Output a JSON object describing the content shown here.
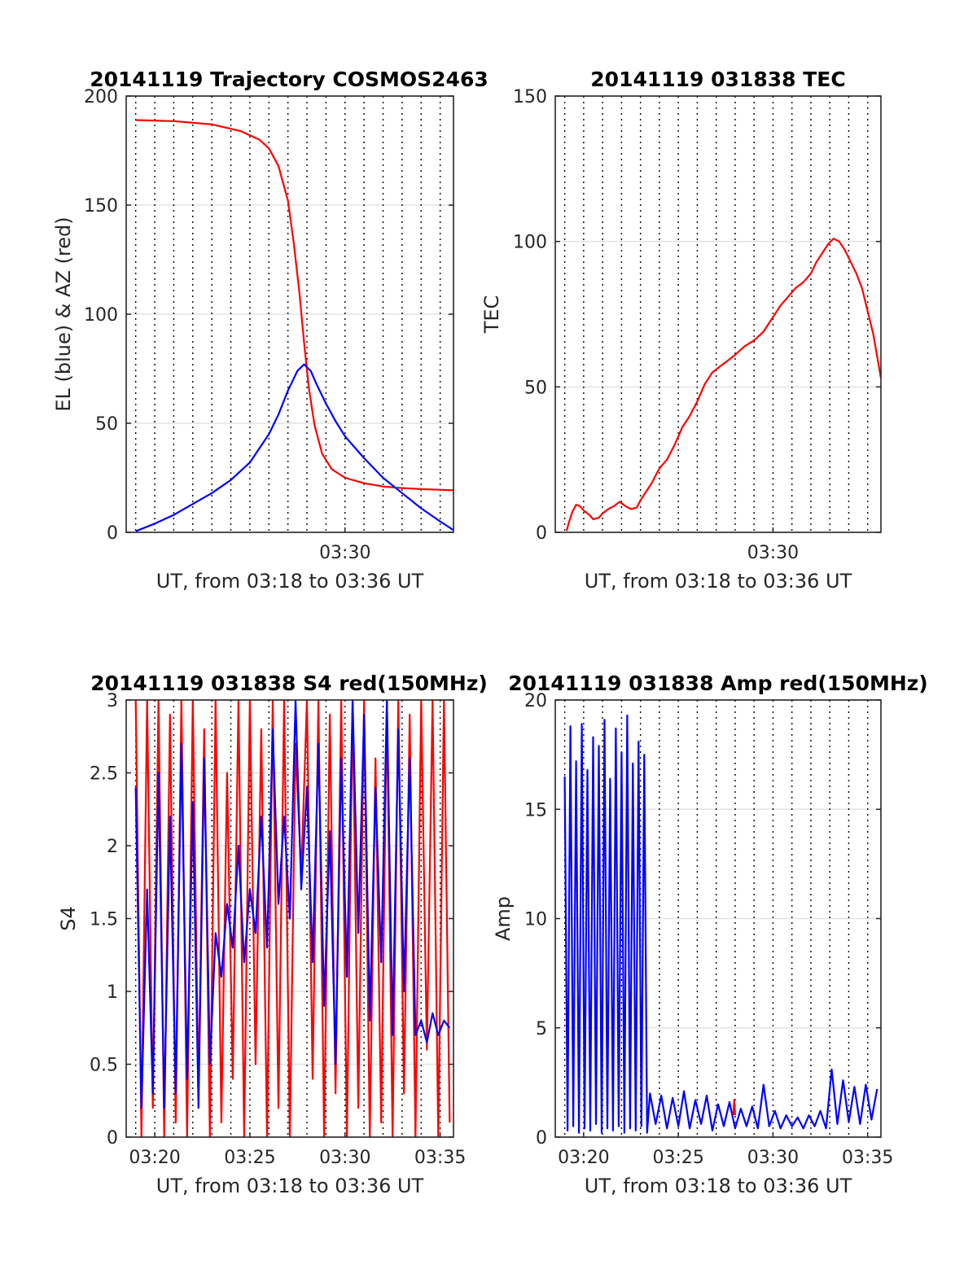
{
  "chart_data": [
    {
      "type": "line",
      "title": "20141119 Trajectory COSMOS2463",
      "xlabel": "UT, from 03:18 to 03:36 UT",
      "ylabel": "EL (blue) & AZ (red)",
      "x_unit": "minutes since 03:18 UT",
      "xlim": [
        18.5,
        35.7
      ],
      "ylim": [
        0,
        200
      ],
      "yticks": [
        0,
        50,
        100,
        150,
        200
      ],
      "xticks": [
        {
          "value": 30,
          "label": "03:30"
        }
      ],
      "grid": "dotted vertical minute lines, light horizontal lines",
      "series": [
        {
          "name": "AZ",
          "color": "#ff0000",
          "x": [
            19.0,
            21.0,
            23.0,
            24.5,
            25.5,
            26.0,
            26.5,
            27.0,
            27.3,
            27.6,
            27.85,
            28.1,
            28.4,
            28.8,
            29.3,
            30.0,
            31.0,
            32.0,
            33.0,
            34.0,
            35.0,
            35.7
          ],
          "y": [
            189,
            188.5,
            187,
            184,
            180,
            176,
            168,
            152,
            133,
            110,
            87,
            66,
            49,
            36,
            29,
            25,
            22.5,
            21,
            20.3,
            19.8,
            19.5,
            19.3
          ]
        },
        {
          "name": "EL",
          "color": "#0000ff",
          "x": [
            19.0,
            20.0,
            21.0,
            22.0,
            23.0,
            24.0,
            25.0,
            26.0,
            26.5,
            27.0,
            27.5,
            27.85,
            28.2,
            28.5,
            29.0,
            29.5,
            30.0,
            31.0,
            32.0,
            33.0,
            34.0,
            35.0,
            35.7
          ],
          "y": [
            0.5,
            4,
            8,
            13,
            18,
            24,
            32,
            45,
            54,
            65,
            74,
            77,
            74,
            68,
            59,
            51,
            44,
            34,
            25,
            18,
            11,
            5,
            1
          ]
        }
      ]
    },
    {
      "type": "line",
      "title": "20141119 031838 TEC",
      "xlabel": "UT, from 03:18 to 03:36 UT",
      "ylabel": "TEC",
      "x_unit": "minutes since 03:18 UT",
      "xlim": [
        18.5,
        35.7
      ],
      "ylim": [
        0,
        150
      ],
      "yticks": [
        0,
        50,
        100,
        150
      ],
      "xticks": [
        {
          "value": 30,
          "label": "03:30"
        }
      ],
      "series": [
        {
          "name": "TEC",
          "color": "#ff0000",
          "x": [
            19.1,
            19.2,
            19.4,
            19.6,
            19.8,
            20.0,
            20.3,
            20.5,
            20.8,
            21.0,
            21.3,
            21.6,
            21.9,
            22.2,
            22.5,
            22.8,
            23.0,
            23.3,
            23.6,
            24.0,
            24.4,
            24.8,
            25.2,
            25.6,
            26.0,
            26.4,
            26.8,
            27.2,
            27.6,
            28.0,
            28.5,
            29.0,
            29.5,
            30.0,
            30.4,
            30.8,
            31.2,
            31.6,
            32.0,
            32.3,
            32.6,
            32.9,
            33.2,
            33.5,
            33.8,
            34.1,
            34.4,
            34.7,
            35.0,
            35.3,
            35.7
          ],
          "y": [
            0.5,
            3,
            7,
            9.5,
            9,
            7.5,
            6,
            4.5,
            5,
            6.5,
            8,
            9,
            10.5,
            9,
            8,
            8.5,
            11,
            14,
            17,
            22,
            25,
            30,
            36,
            40,
            45,
            51,
            55,
            57,
            59,
            61,
            64,
            66,
            69,
            74,
            78,
            81,
            84,
            86,
            89,
            93,
            96,
            99,
            101,
            100,
            97,
            93,
            89,
            84,
            76,
            68,
            53
          ]
        }
      ]
    },
    {
      "type": "line",
      "title": "20141119 031838 S4 red(150MHz)",
      "xlabel": "UT, from 03:18 to 03:36 UT",
      "ylabel": "S4",
      "x_unit": "minutes since 03:18 UT",
      "xlim": [
        18.5,
        35.7
      ],
      "ylim": [
        0,
        3
      ],
      "yticks": [
        0,
        0.5,
        1,
        1.5,
        2,
        2.5,
        3
      ],
      "xticks": [
        {
          "value": 20,
          "label": "03:20"
        },
        {
          "value": 25,
          "label": "03:25"
        },
        {
          "value": 30,
          "label": "03:30"
        },
        {
          "value": 35,
          "label": "03:35"
        }
      ],
      "series": [
        {
          "name": "red",
          "color": "#ff0000",
          "x": [
            19.0,
            19.3,
            19.6,
            19.9,
            20.2,
            20.5,
            20.8,
            21.1,
            21.4,
            21.7,
            22.0,
            22.3,
            22.6,
            22.9,
            23.2,
            23.5,
            23.8,
            24.1,
            24.4,
            24.7,
            25.0,
            25.3,
            25.6,
            25.9,
            26.2,
            26.5,
            26.8,
            27.1,
            27.4,
            27.7,
            28.0,
            28.3,
            28.6,
            28.9,
            29.2,
            29.5,
            29.8,
            30.1,
            30.4,
            30.7,
            31.0,
            31.3,
            31.6,
            31.9,
            32.2,
            32.5,
            32.8,
            33.1,
            33.4,
            33.7,
            34.0,
            34.3,
            34.6,
            34.9,
            35.2,
            35.5
          ],
          "y": [
            3,
            0,
            3,
            0.2,
            3,
            0,
            2.9,
            0.1,
            3,
            0,
            3,
            0.3,
            2.8,
            0,
            3,
            0.1,
            2.5,
            0.4,
            3,
            0,
            3,
            0.5,
            2.8,
            0,
            3,
            0.2,
            3,
            0,
            2.7,
            1.8,
            3,
            0.4,
            3,
            0,
            2.9,
            0.3,
            3,
            0,
            3,
            0.2,
            3,
            0,
            2.6,
            0.1,
            3,
            0,
            3,
            0.3,
            2.9,
            0,
            3,
            0.6,
            3,
            0,
            3,
            0.1
          ]
        },
        {
          "name": "blue",
          "color": "#0000ff",
          "x": [
            19.0,
            19.3,
            19.6,
            19.9,
            20.2,
            20.5,
            20.8,
            21.1,
            21.4,
            21.7,
            22.0,
            22.3,
            22.6,
            22.9,
            23.2,
            23.5,
            23.8,
            24.1,
            24.4,
            24.7,
            25.0,
            25.3,
            25.6,
            25.9,
            26.2,
            26.5,
            26.8,
            27.1,
            27.4,
            27.7,
            28.0,
            28.3,
            28.6,
            28.9,
            29.2,
            29.5,
            29.8,
            30.1,
            30.4,
            30.7,
            31.0,
            31.3,
            31.6,
            31.9,
            32.2,
            32.5,
            32.8,
            33.1,
            33.4,
            33.7,
            34.0,
            34.3,
            34.6,
            34.9,
            35.2,
            35.5
          ],
          "y": [
            2.4,
            0.2,
            1.7,
            0.3,
            2.5,
            0.2,
            2.2,
            0.3,
            2.7,
            0.4,
            2.3,
            0.2,
            2.6,
            0.5,
            1.4,
            1.1,
            1.6,
            1.3,
            2.0,
            1.2,
            1.7,
            1.4,
            2.2,
            1.3,
            2.8,
            1.6,
            2.2,
            1.5,
            3.0,
            1.7,
            2.4,
            1.2,
            2.7,
            0.9,
            2.1,
            0.5,
            2.6,
            1.1,
            3.0,
            1.4,
            2.9,
            0.8,
            2.4,
            1.2,
            3.0,
            0.7,
            2.8,
            1.0,
            2.6,
            0.7,
            0.8,
            0.65,
            0.85,
            0.7,
            0.8,
            0.75
          ]
        }
      ]
    },
    {
      "type": "line",
      "title": "20141119 031838 Amp red(150MHz)",
      "xlabel": "UT, from 03:18 to 03:36 UT",
      "ylabel": "Amp",
      "x_unit": "minutes since 03:18 UT",
      "xlim": [
        18.5,
        35.7
      ],
      "ylim": [
        0,
        20
      ],
      "yticks": [
        0,
        5,
        10,
        15,
        20
      ],
      "xticks": [
        {
          "value": 20,
          "label": "03:20"
        },
        {
          "value": 25,
          "label": "03:25"
        },
        {
          "value": 30,
          "label": "03:30"
        },
        {
          "value": 35,
          "label": "03:35"
        }
      ],
      "series": [
        {
          "name": "blue",
          "color": "#0000ff",
          "x": [
            19.0,
            19.15,
            19.3,
            19.45,
            19.6,
            19.75,
            19.9,
            20.05,
            20.2,
            20.35,
            20.5,
            20.65,
            20.8,
            20.95,
            21.1,
            21.25,
            21.4,
            21.55,
            21.7,
            21.85,
            22.0,
            22.15,
            22.3,
            22.45,
            22.6,
            22.75,
            22.9,
            23.05,
            23.2,
            23.35,
            23.5,
            23.8,
            24.1,
            24.4,
            24.7,
            25.0,
            25.3,
            25.6,
            25.9,
            26.2,
            26.5,
            26.8,
            27.1,
            27.4,
            27.7,
            28.0,
            28.3,
            28.6,
            28.9,
            29.2,
            29.5,
            29.8,
            30.1,
            30.4,
            30.7,
            31.0,
            31.3,
            31.6,
            31.9,
            32.2,
            32.5,
            32.8,
            33.1,
            33.4,
            33.7,
            34.0,
            34.3,
            34.6,
            34.9,
            35.2,
            35.5
          ],
          "y": [
            16.5,
            0.3,
            18.8,
            0.5,
            17.2,
            0.2,
            18.9,
            0.4,
            16.8,
            0.3,
            18.3,
            0.6,
            17.9,
            0.2,
            19.1,
            0.4,
            16.4,
            0.3,
            18.7,
            0.5,
            17.6,
            0.2,
            19.3,
            0.4,
            17.1,
            0.3,
            18.1,
            0.5,
            17.5,
            0.2,
            2.0,
            0.6,
            1.9,
            0.4,
            1.8,
            0.5,
            2.1,
            0.4,
            1.7,
            0.6,
            1.9,
            0.3,
            1.5,
            0.5,
            1.6,
            0.4,
            1.3,
            0.5,
            1.4,
            0.4,
            2.4,
            0.5,
            1.2,
            0.4,
            1.0,
            0.5,
            0.9,
            0.4,
            1.0,
            0.5,
            1.2,
            0.4,
            3.1,
            0.6,
            2.6,
            0.7,
            2.3,
            0.6,
            2.4,
            0.8,
            2.2
          ]
        },
        {
          "name": "red",
          "color": "#ff0000",
          "x": [
            27.9,
            27.95,
            28.0
          ],
          "y": [
            1.0,
            1.7,
            1.0
          ]
        }
      ]
    }
  ]
}
